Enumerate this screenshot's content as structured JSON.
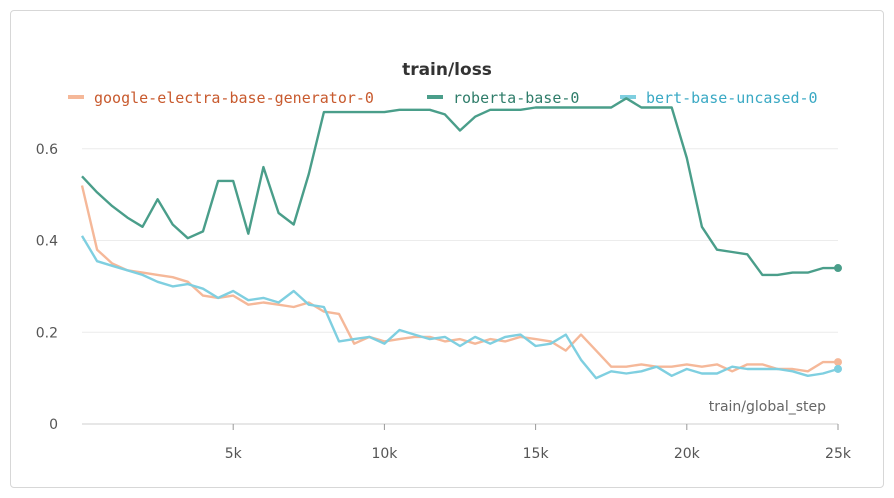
{
  "chart_data": {
    "type": "line",
    "title": "train/loss",
    "xlabel": "train/global_step",
    "ylabel": "",
    "xlim": [
      0,
      25000
    ],
    "ylim": [
      0,
      0.75
    ],
    "x_ticks": [
      5000,
      10000,
      15000,
      20000,
      25000
    ],
    "x_tick_labels": [
      "5k",
      "10k",
      "15k",
      "20k",
      "25k"
    ],
    "y_ticks": [
      0,
      0.2,
      0.4,
      0.6
    ],
    "y_tick_labels": [
      "0",
      "0.2",
      "0.4",
      "0.6"
    ],
    "grid": true,
    "legend_position": "top",
    "series": [
      {
        "name": "google-electra-base-generator-0",
        "color": "#f5b899",
        "text_color": "#c85a2e",
        "x": [
          0,
          500,
          1000,
          1500,
          2000,
          2500,
          3000,
          3500,
          4000,
          4500,
          5000,
          5500,
          6000,
          6500,
          7000,
          7500,
          8000,
          8500,
          9000,
          9500,
          10000,
          10500,
          11000,
          11500,
          12000,
          12500,
          13000,
          13500,
          14000,
          14500,
          15000,
          15500,
          16000,
          16500,
          17000,
          17500,
          18000,
          18500,
          19000,
          19500,
          20000,
          20500,
          21000,
          21500,
          22000,
          22500,
          23000,
          23500,
          24000,
          24500,
          25000
        ],
        "y": [
          0.52,
          0.38,
          0.35,
          0.335,
          0.33,
          0.325,
          0.32,
          0.31,
          0.28,
          0.275,
          0.28,
          0.26,
          0.265,
          0.26,
          0.255,
          0.265,
          0.245,
          0.24,
          0.175,
          0.19,
          0.18,
          0.185,
          0.19,
          0.19,
          0.18,
          0.185,
          0.175,
          0.185,
          0.18,
          0.19,
          0.185,
          0.18,
          0.16,
          0.195,
          0.16,
          0.125,
          0.125,
          0.13,
          0.125,
          0.125,
          0.13,
          0.125,
          0.13,
          0.115,
          0.13,
          0.13,
          0.12,
          0.12,
          0.115,
          0.135,
          0.135
        ]
      },
      {
        "name": "roberta-base-0",
        "color": "#4a9e8a",
        "text_color": "#2f7d6a",
        "x": [
          0,
          500,
          1000,
          1500,
          2000,
          2500,
          3000,
          3500,
          4000,
          4500,
          5000,
          5500,
          6000,
          6500,
          7000,
          7500,
          8000,
          8500,
          9000,
          9500,
          10000,
          10500,
          11000,
          11500,
          12000,
          12500,
          13000,
          13500,
          14000,
          14500,
          15000,
          15500,
          16000,
          16500,
          17000,
          17500,
          18000,
          18500,
          19000,
          19500,
          20000,
          20500,
          21000,
          21500,
          22000,
          22500,
          23000,
          23500,
          24000,
          24500,
          25000
        ],
        "y": [
          0.54,
          0.505,
          0.475,
          0.45,
          0.43,
          0.49,
          0.435,
          0.405,
          0.42,
          0.53,
          0.53,
          0.415,
          0.56,
          0.46,
          0.435,
          0.545,
          0.68,
          0.68,
          0.68,
          0.68,
          0.68,
          0.685,
          0.685,
          0.685,
          0.675,
          0.64,
          0.67,
          0.685,
          0.685,
          0.685,
          0.69,
          0.69,
          0.69,
          0.69,
          0.69,
          0.69,
          0.71,
          0.69,
          0.69,
          0.69,
          0.58,
          0.43,
          0.38,
          0.375,
          0.37,
          0.325,
          0.325,
          0.33,
          0.33,
          0.34,
          0.34
        ]
      },
      {
        "name": "bert-base-uncased-0",
        "color": "#7fcfe0",
        "text_color": "#3aa9c4",
        "x": [
          0,
          500,
          1000,
          1500,
          2000,
          2500,
          3000,
          3500,
          4000,
          4500,
          5000,
          5500,
          6000,
          6500,
          7000,
          7500,
          8000,
          8500,
          9000,
          9500,
          10000,
          10500,
          11000,
          11500,
          12000,
          12500,
          13000,
          13500,
          14000,
          14500,
          15000,
          15500,
          16000,
          16500,
          17000,
          17500,
          18000,
          18500,
          19000,
          19500,
          20000,
          20500,
          21000,
          21500,
          22000,
          22500,
          23000,
          23500,
          24000,
          24500,
          25000
        ],
        "y": [
          0.41,
          0.355,
          0.345,
          0.335,
          0.325,
          0.31,
          0.3,
          0.305,
          0.295,
          0.275,
          0.29,
          0.27,
          0.275,
          0.265,
          0.29,
          0.26,
          0.255,
          0.18,
          0.185,
          0.19,
          0.175,
          0.205,
          0.195,
          0.185,
          0.19,
          0.17,
          0.19,
          0.175,
          0.19,
          0.195,
          0.17,
          0.175,
          0.195,
          0.14,
          0.1,
          0.115,
          0.11,
          0.115,
          0.125,
          0.105,
          0.12,
          0.11,
          0.11,
          0.125,
          0.12,
          0.12,
          0.12,
          0.115,
          0.105,
          0.11,
          0.12
        ]
      }
    ]
  }
}
